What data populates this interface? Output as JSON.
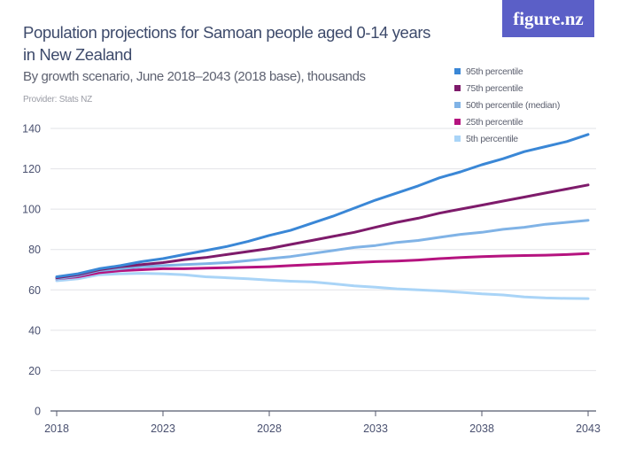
{
  "header": {
    "title": "Population projections for Samoan people aged 0-14 years in New Zealand",
    "subtitle": "By growth scenario, June 2018–2043 (2018 base), thousands",
    "provider": "Provider: Stats NZ",
    "logo": "figure.nz"
  },
  "chart_data": {
    "type": "line",
    "title": "Population projections for Samoan people aged 0-14 years in New Zealand",
    "subtitle": "By growth scenario, June 2018–2043 (2018 base), thousands",
    "x": [
      2018,
      2019,
      2020,
      2021,
      2022,
      2023,
      2024,
      2025,
      2026,
      2027,
      2028,
      2029,
      2030,
      2031,
      2032,
      2033,
      2034,
      2035,
      2036,
      2037,
      2038,
      2039,
      2040,
      2041,
      2042,
      2043
    ],
    "xticks": [
      "2018",
      "2023",
      "2028",
      "2033",
      "2038",
      "2043"
    ],
    "yticks": [
      "0",
      "20",
      "40",
      "60",
      "80",
      "100",
      "120",
      "140"
    ],
    "ylim": [
      0,
      140
    ],
    "grid": true,
    "legend_position": "top-right",
    "series": [
      {
        "name": "95th percentile",
        "color": "#3a87d6",
        "values": [
          66.5,
          68,
          70.5,
          72,
          74,
          75.5,
          77.5,
          79.5,
          81.5,
          84,
          87,
          89.5,
          93,
          96.5,
          100.5,
          104.5,
          108,
          111.5,
          115.5,
          118.5,
          122,
          125,
          128.5,
          131,
          133.5,
          137
        ]
      },
      {
        "name": "75th percentile",
        "color": "#7e1b6b",
        "values": [
          66,
          67.5,
          70,
          71.5,
          72.5,
          73.5,
          75,
          76,
          77.5,
          79,
          80.5,
          82.5,
          84.5,
          86.5,
          88.5,
          91,
          93.5,
          95.5,
          98,
          100,
          102,
          104,
          106,
          108,
          110,
          112
        ]
      },
      {
        "name": "50th percentile (median)",
        "color": "#80b3e6",
        "values": [
          65.5,
          67,
          69.5,
          70.5,
          71.5,
          72,
          72.5,
          73,
          73.5,
          74.5,
          75.5,
          76.5,
          78,
          79.5,
          81,
          82,
          83.5,
          84.5,
          86,
          87.5,
          88.5,
          90,
          91,
          92.5,
          93.5,
          94.5
        ]
      },
      {
        "name": "25th percentile",
        "color": "#b5137f",
        "values": [
          65.5,
          66.5,
          68.5,
          69.5,
          70,
          70.5,
          70.5,
          70.8,
          71,
          71.2,
          71.5,
          72,
          72.5,
          73,
          73.5,
          74,
          74.3,
          74.8,
          75.5,
          76,
          76.5,
          76.8,
          77,
          77.2,
          77.5,
          78
        ]
      },
      {
        "name": "5th percentile",
        "color": "#a9d4f7",
        "values": [
          64.5,
          65.5,
          67.5,
          68,
          68.2,
          68,
          67.5,
          66.5,
          66,
          65.5,
          64.8,
          64.3,
          64,
          63,
          62,
          61.3,
          60.5,
          60,
          59.5,
          58.8,
          58,
          57.5,
          56.5,
          56,
          55.8,
          55.7
        ]
      }
    ]
  }
}
